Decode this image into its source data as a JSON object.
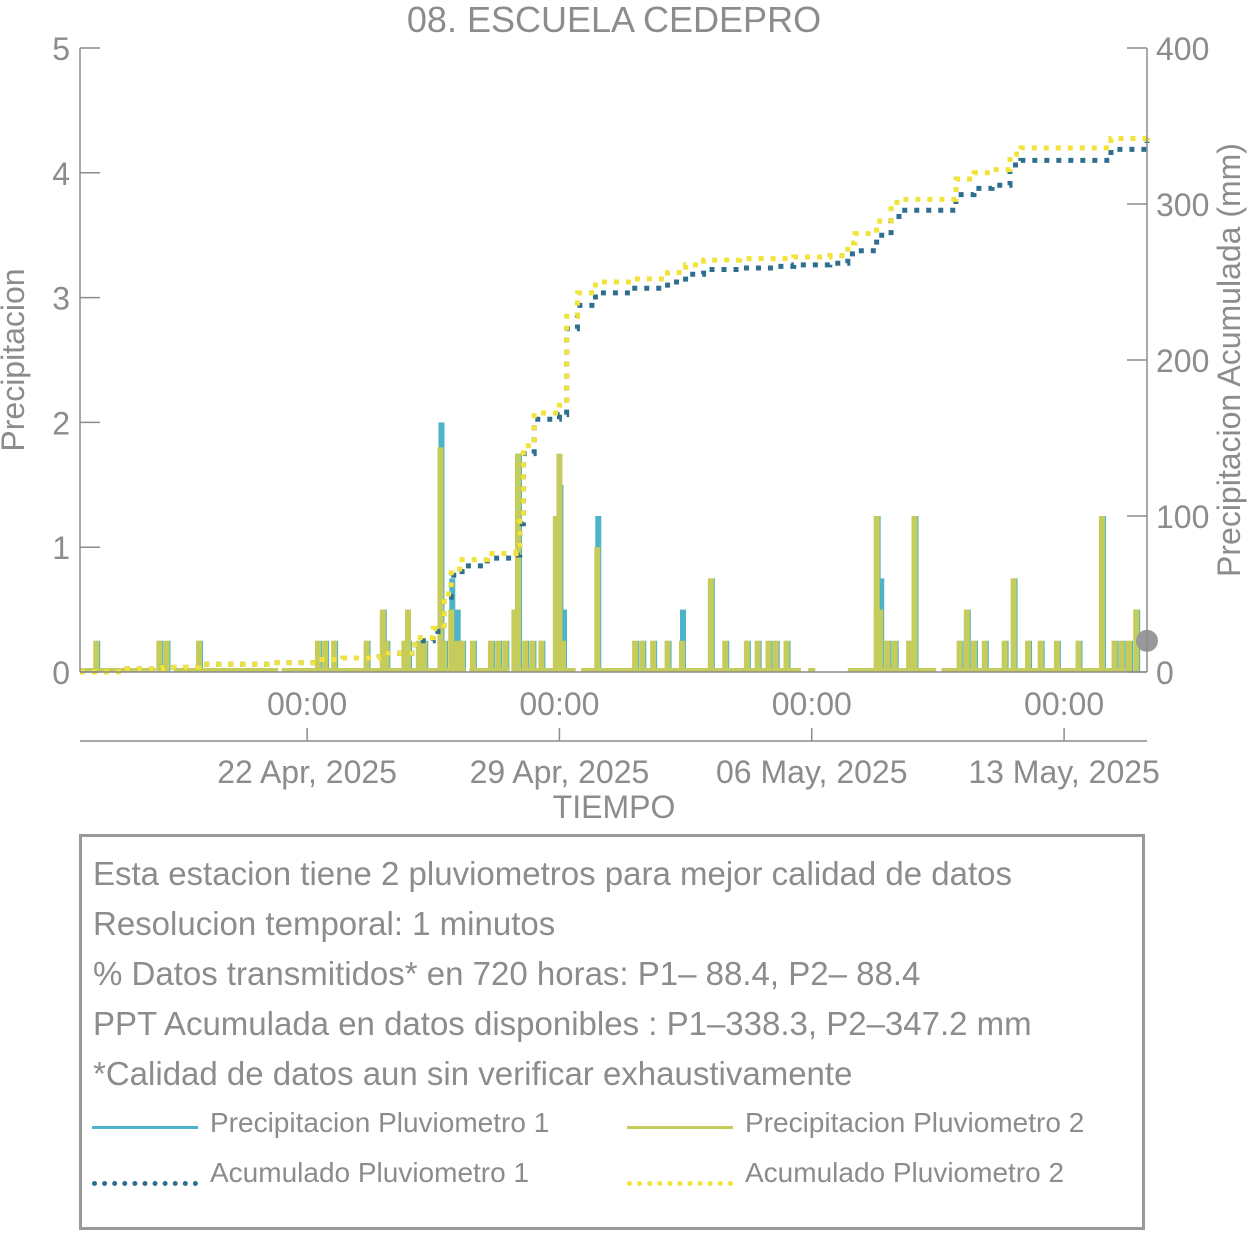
{
  "chart_data": {
    "type": "bar+line",
    "title": "08. ESCUELA CEDEPRO",
    "xlabel": "TIEMPO",
    "ylabel_left": "Precipitacion",
    "ylabel_right": "Precipitacion Acumulada (mm)",
    "ylim_left": [
      0,
      5
    ],
    "ylim_right": [
      0,
      400
    ],
    "yticks_left": [
      "0",
      "1",
      "2",
      "3",
      "4",
      "5"
    ],
    "yticks_right": [
      "0",
      "100",
      "200",
      "300",
      "400"
    ],
    "x_range_days": [
      -6.3,
      23.3
    ],
    "x_time_label": "00:00",
    "x_ticks": [
      {
        "day": 0,
        "date_label": "22 Apr, 2025"
      },
      {
        "day": 7,
        "date_label": "29 Apr, 2025"
      },
      {
        "day": 14,
        "date_label": "06 May, 2025"
      },
      {
        "day": 21,
        "date_label": "13 May, 2025"
      }
    ],
    "grid": false,
    "legend_position": "bottom-box",
    "colors": {
      "p1": "#4db3c8",
      "p2": "#c6cc5c",
      "acc1": "#2e6f8f",
      "acc2": "#f2e33a",
      "axis": "#8c8c8c",
      "marker": "#999999"
    },
    "gaps_days": [
      [
        -4.2,
        -3.7
      ],
      [
        -0.8,
        -0.7
      ],
      [
        4.4,
        4.5
      ],
      [
        5.6,
        5.85
      ],
      [
        7.45,
        7.6
      ],
      [
        13.7,
        13.9
      ],
      [
        14.1,
        15.0
      ],
      [
        17.45,
        17.6
      ],
      [
        22.7,
        23.3
      ]
    ],
    "bars": [
      {
        "x": -5.85,
        "p1": 0.25,
        "p2": 0.25
      },
      {
        "x": -4.1,
        "p1": 0.25,
        "p2": 0.25
      },
      {
        "x": -3.9,
        "p1": 0.25,
        "p2": 0.25
      },
      {
        "x": -3.0,
        "p1": 0.25,
        "p2": 0.25
      },
      {
        "x": 0.3,
        "p1": 0.25,
        "p2": 0.25
      },
      {
        "x": 0.5,
        "p1": 0.25,
        "p2": 0.25
      },
      {
        "x": 0.75,
        "p1": 0.25,
        "p2": 0.25
      },
      {
        "x": 1.65,
        "p1": 0.25,
        "p2": 0.25
      },
      {
        "x": 2.1,
        "p1": 0.5,
        "p2": 0.5
      },
      {
        "x": 2.2,
        "p1": 0.25,
        "p2": 0.25
      },
      {
        "x": 2.7,
        "p1": 0.25,
        "p2": 0.25
      },
      {
        "x": 2.8,
        "p1": 0.25,
        "p2": 0.5
      },
      {
        "x": 3.1,
        "p1": 0.25,
        "p2": 0.25
      },
      {
        "x": 3.25,
        "p1": 0.25,
        "p2": 0.25
      },
      {
        "x": 3.7,
        "p1": 2.0,
        "p2": 1.8
      },
      {
        "x": 3.8,
        "p1": 0.25,
        "p2": 0.25
      },
      {
        "x": 4.0,
        "p1": 0.75,
        "p2": 0.5
      },
      {
        "x": 4.15,
        "p1": 0.5,
        "p2": 0.25
      },
      {
        "x": 4.3,
        "p1": 0.25,
        "p2": 0.25
      },
      {
        "x": 4.6,
        "p1": 0.25,
        "p2": 0.25
      },
      {
        "x": 5.1,
        "p1": 0.25,
        "p2": 0.25
      },
      {
        "x": 5.3,
        "p1": 0.25,
        "p2": 0.25
      },
      {
        "x": 5.5,
        "p1": 0.25,
        "p2": 0.25
      },
      {
        "x": 5.75,
        "p1": 0.5,
        "p2": 0.5
      },
      {
        "x": 5.85,
        "p1": 1.75,
        "p2": 1.75
      },
      {
        "x": 6.05,
        "p1": 0.25,
        "p2": 0.25
      },
      {
        "x": 6.25,
        "p1": 0.25,
        "p2": 0.25
      },
      {
        "x": 6.5,
        "p1": 0.25,
        "p2": 0.25
      },
      {
        "x": 6.9,
        "p1": 1.25,
        "p2": 1.25
      },
      {
        "x": 7.0,
        "p1": 1.5,
        "p2": 1.75
      },
      {
        "x": 7.1,
        "p1": 0.5,
        "p2": 0.25
      },
      {
        "x": 8.05,
        "p1": 1.25,
        "p2": 1.0
      },
      {
        "x": 9.1,
        "p1": 0.25,
        "p2": 0.25
      },
      {
        "x": 9.3,
        "p1": 0.25,
        "p2": 0.25
      },
      {
        "x": 9.6,
        "p1": 0.25,
        "p2": 0.25
      },
      {
        "x": 10.0,
        "p1": 0.25,
        "p2": 0.25
      },
      {
        "x": 10.4,
        "p1": 0.5,
        "p2": 0.25
      },
      {
        "x": 11.2,
        "p1": 0.75,
        "p2": 0.75
      },
      {
        "x": 11.6,
        "p1": 0.25,
        "p2": 0.25
      },
      {
        "x": 12.2,
        "p1": 0.25,
        "p2": 0.25
      },
      {
        "x": 12.5,
        "p1": 0.25,
        "p2": 0.25
      },
      {
        "x": 12.8,
        "p1": 0.25,
        "p2": 0.25
      },
      {
        "x": 13.0,
        "p1": 0.25,
        "p2": 0.25
      },
      {
        "x": 13.3,
        "p1": 0.25,
        "p2": 0.25
      },
      {
        "x": 15.8,
        "p1": 1.25,
        "p2": 1.25
      },
      {
        "x": 15.9,
        "p1": 0.75,
        "p2": 0.5
      },
      {
        "x": 16.1,
        "p1": 0.25,
        "p2": 0.25
      },
      {
        "x": 16.3,
        "p1": 0.25,
        "p2": 0.25
      },
      {
        "x": 16.7,
        "p1": 0.25,
        "p2": 0.25
      },
      {
        "x": 16.85,
        "p1": 1.25,
        "p2": 1.25
      },
      {
        "x": 18.1,
        "p1": 0.25,
        "p2": 0.25
      },
      {
        "x": 18.3,
        "p1": 0.5,
        "p2": 0.5
      },
      {
        "x": 18.5,
        "p1": 0.25,
        "p2": 0.25
      },
      {
        "x": 18.8,
        "p1": 0.25,
        "p2": 0.25
      },
      {
        "x": 19.35,
        "p1": 0.25,
        "p2": 0.25
      },
      {
        "x": 19.6,
        "p1": 0.75,
        "p2": 0.75
      },
      {
        "x": 20.0,
        "p1": 0.25,
        "p2": 0.25
      },
      {
        "x": 20.35,
        "p1": 0.25,
        "p2": 0.25
      },
      {
        "x": 20.8,
        "p1": 0.25,
        "p2": 0.25
      },
      {
        "x": 21.4,
        "p1": 0.25,
        "p2": 0.25
      },
      {
        "x": 22.05,
        "p1": 1.25,
        "p2": 1.25
      },
      {
        "x": 22.4,
        "p1": 0.25,
        "p2": 0.25
      },
      {
        "x": 22.6,
        "p1": 0.25,
        "p2": 0.25
      },
      {
        "x": 22.8,
        "p1": 0.25,
        "p2": 0.25
      },
      {
        "x": 23.0,
        "p1": 0.5,
        "p2": 0.5
      }
    ],
    "series": [
      {
        "name": "Acumulado Pluviometro 1",
        "x": [
          -6.3,
          -5.0,
          -4.0,
          -3.0,
          -1.0,
          0.3,
          1.0,
          2.0,
          3.0,
          3.5,
          3.8,
          4.0,
          4.3,
          5.0,
          5.8,
          5.9,
          6.0,
          6.3,
          7.0,
          7.2,
          7.5,
          8.0,
          9.0,
          10.0,
          10.5,
          11.0,
          12.0,
          13.0,
          13.5,
          14.0,
          14.5,
          15.0,
          15.2,
          15.8,
          16.2,
          16.5,
          16.9,
          17.5,
          18.0,
          18.5,
          19.0,
          19.5,
          19.8,
          20.5,
          21.5,
          22.0,
          22.3,
          23.3
        ],
        "y": [
          0,
          2,
          3,
          5,
          6,
          8,
          9,
          12,
          20,
          26,
          48,
          62,
          68,
          73,
          75,
          95,
          140,
          162,
          165,
          220,
          235,
          243,
          246,
          250,
          255,
          258,
          259,
          260,
          261,
          261,
          262,
          268,
          270,
          280,
          292,
          296,
          296,
          296,
          306,
          310,
          312,
          325,
          328,
          328,
          328,
          328,
          335,
          340
        ]
      },
      {
        "name": "Acumulado Pluviometro 2",
        "x": [
          -6.3,
          -5.0,
          -4.0,
          -3.0,
          -1.0,
          0.3,
          1.0,
          2.0,
          3.0,
          3.5,
          3.8,
          4.0,
          4.3,
          5.0,
          5.8,
          5.9,
          6.0,
          6.3,
          7.0,
          7.2,
          7.5,
          8.0,
          9.0,
          10.0,
          10.5,
          11.0,
          12.0,
          13.0,
          13.5,
          14.0,
          14.5,
          15.0,
          15.2,
          15.8,
          16.2,
          16.5,
          16.9,
          17.5,
          18.0,
          18.5,
          19.0,
          19.5,
          19.8,
          20.5,
          21.5,
          22.0,
          22.3,
          23.3
        ],
        "y": [
          0,
          2,
          3,
          5,
          6,
          8,
          9,
          12,
          22,
          28,
          50,
          66,
          72,
          76,
          77,
          100,
          145,
          166,
          171,
          228,
          243,
          250,
          252,
          256,
          261,
          264,
          265,
          265,
          266,
          266,
          267,
          275,
          281,
          289,
          301,
          303,
          303,
          303,
          316,
          320,
          322,
          332,
          336,
          336,
          336,
          336,
          342,
          347
        ]
      }
    ],
    "end_marker": {
      "x": 23.3,
      "y_left": 0.25
    }
  },
  "info": {
    "line1": "Esta estacion tiene 2 pluviometros para mejor calidad de datos",
    "line2": "Resolucion temporal: 1 minutos",
    "line3": "% Datos transmitidos* en 720 horas: P1– 88.4, P2– 88.4",
    "line4": "PPT Acumulada en datos disponibles : P1–338.3, P2–347.2 mm",
    "line5": "*Calidad de datos aun sin verificar exhaustivamente"
  },
  "legend": {
    "p1": "Precipitacion Pluviometro 1",
    "p2": "Precipitacion Pluviometro 2",
    "acc1": "Acumulado Pluviometro 1",
    "acc2": "Acumulado Pluviometro 2"
  }
}
